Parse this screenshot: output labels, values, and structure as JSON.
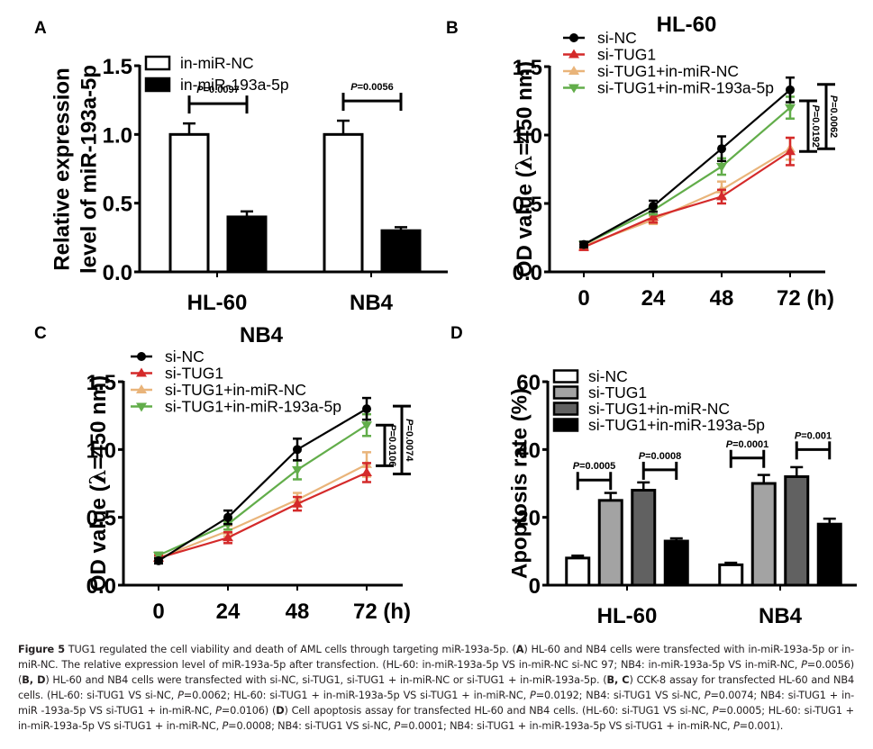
{
  "figure": {
    "panels": [
      "A",
      "B",
      "C",
      "D"
    ]
  },
  "chart_data": [
    {
      "panel": "A",
      "type": "bar",
      "title": "",
      "xlabel": "",
      "ylabel_lines": [
        "Relative expression",
        "level of miR-193a-5p"
      ],
      "ylim": [
        0,
        1.5
      ],
      "yticks": [
        0.0,
        0.5,
        1.0,
        1.5
      ],
      "ytick_labels": [
        "0.0",
        "0.5",
        "1.0",
        "1.5"
      ],
      "categories": [
        "HL-60",
        "NB4"
      ],
      "series": [
        {
          "name": "in-miR-NC",
          "fill": "#ffffff",
          "values": [
            1.0,
            1.0
          ],
          "errors": [
            0.08,
            0.1
          ]
        },
        {
          "name": "in-miR-193a-5p",
          "fill": "#000000",
          "values": [
            0.4,
            0.3
          ],
          "errors": [
            0.04,
            0.025
          ]
        }
      ],
      "comparisons": [
        {
          "category": "HL-60",
          "label_prefix": "P",
          "label_value": "=0.0097"
        },
        {
          "category": "NB4",
          "label_prefix": "P",
          "label_value": "=0.0056"
        }
      ],
      "legend": "top-left"
    },
    {
      "panel": "B",
      "type": "line",
      "title": "HL-60",
      "xlabel": "",
      "ylabel": "OD value (λ=450 nm)",
      "ylabel_parts": [
        "OD value (",
        "λ",
        "=450 nm)"
      ],
      "ylim": [
        0,
        1.5
      ],
      "yticks": [
        0.0,
        0.5,
        1.0,
        1.5
      ],
      "ytick_labels": [
        "0.0",
        "0.5",
        "1.0",
        "1.5"
      ],
      "x": [
        0,
        24,
        48,
        72
      ],
      "xtick_labels": [
        "0",
        "24",
        "48",
        "72 (h)"
      ],
      "series": [
        {
          "name": "si-NC",
          "color": "#000000",
          "marker": "circle",
          "values": [
            0.2,
            0.48,
            0.9,
            1.33
          ],
          "errors": [
            0.02,
            0.04,
            0.09,
            0.09
          ]
        },
        {
          "name": "si-TUG1",
          "color": "#d42a2a",
          "marker": "triangle-up",
          "values": [
            0.18,
            0.4,
            0.55,
            0.88
          ],
          "errors": [
            0.02,
            0.04,
            0.05,
            0.1
          ]
        },
        {
          "name": "si-TUG1+in-miR-NC",
          "color": "#e9b47a",
          "marker": "triangle-up",
          "values": [
            0.19,
            0.38,
            0.6,
            0.9
          ],
          "errors": [
            0.02,
            0.03,
            0.06,
            0.08
          ]
        },
        {
          "name": "si-TUG1+in-miR-193a-5p",
          "color": "#62ad4a",
          "marker": "triangle-down",
          "values": [
            0.2,
            0.45,
            0.77,
            1.2
          ],
          "errors": [
            0.02,
            0.03,
            0.06,
            0.08
          ]
        }
      ],
      "comparisons": [
        {
          "label_prefix": "P",
          "label_value": "=0.0192",
          "from": 0.88,
          "to": 1.25
        },
        {
          "label_prefix": "P",
          "label_value": "=0.0062",
          "from": 0.9,
          "to": 1.37
        }
      ],
      "legend": "top-left"
    },
    {
      "panel": "C",
      "type": "line",
      "title": "NB4",
      "xlabel": "",
      "ylabel": "OD value (λ=450 nm)",
      "ylabel_parts": [
        "OD value (",
        "λ",
        "=450 nm)"
      ],
      "ylim": [
        0,
        1.5
      ],
      "yticks": [
        0.0,
        0.5,
        1.0,
        1.5
      ],
      "ytick_labels": [
        "0.0",
        "0.5",
        "1.0",
        "1.5"
      ],
      "x": [
        0,
        24,
        48,
        72
      ],
      "xtick_labels": [
        "0",
        "24",
        "48",
        "72 (h)"
      ],
      "series": [
        {
          "name": "si-NC",
          "color": "#000000",
          "marker": "circle",
          "values": [
            0.18,
            0.5,
            1.0,
            1.3
          ],
          "errors": [
            0.02,
            0.05,
            0.08,
            0.08
          ]
        },
        {
          "name": "si-TUG1",
          "color": "#d42a2a",
          "marker": "triangle-up",
          "values": [
            0.2,
            0.35,
            0.6,
            0.83
          ],
          "errors": [
            0.02,
            0.04,
            0.05,
            0.07
          ]
        },
        {
          "name": "si-TUG1+in-miR-NC",
          "color": "#e9b47a",
          "marker": "triangle-up",
          "values": [
            0.2,
            0.4,
            0.63,
            0.89
          ],
          "errors": [
            0.02,
            0.04,
            0.05,
            0.09
          ]
        },
        {
          "name": "si-TUG1+in-miR-193a-5p",
          "color": "#62ad4a",
          "marker": "triangle-down",
          "values": [
            0.22,
            0.45,
            0.85,
            1.18
          ],
          "errors": [
            0.02,
            0.04,
            0.07,
            0.08
          ]
        }
      ],
      "comparisons": [
        {
          "label_prefix": "P",
          "label_value": "=0.0106",
          "from": 0.88,
          "to": 1.18
        },
        {
          "label_prefix": "P",
          "label_value": "=0.0074",
          "from": 0.82,
          "to": 1.32
        }
      ],
      "legend": "top-left"
    },
    {
      "panel": "D",
      "type": "bar",
      "title": "",
      "xlabel": "",
      "ylabel": "Apoptosis rate (%)",
      "ylim": [
        0,
        60
      ],
      "yticks": [
        0,
        20,
        40,
        60
      ],
      "ytick_labels": [
        "0",
        "20",
        "40",
        "60"
      ],
      "categories": [
        "HL-60",
        "NB4"
      ],
      "series": [
        {
          "name": "si-NC",
          "fill": "#ffffff",
          "values": [
            8,
            6
          ],
          "errors": [
            0.7,
            0.6
          ]
        },
        {
          "name": "si-TUG1",
          "fill": "#a3a3a3",
          "values": [
            25,
            30
          ],
          "errors": [
            2.2,
            2.5
          ]
        },
        {
          "name": "si-TUG1+in-miR-NC",
          "fill": "#616161",
          "values": [
            28,
            32
          ],
          "errors": [
            2.3,
            2.8
          ]
        },
        {
          "name": "si-TUG1+in-miR-193a-5p",
          "fill": "#000000",
          "values": [
            13,
            18
          ],
          "errors": [
            0.8,
            1.6
          ]
        }
      ],
      "comparisons": [
        {
          "category": "HL-60",
          "between": [
            0,
            1
          ],
          "level": 31,
          "label_prefix": "P",
          "label_value": "=0.0005"
        },
        {
          "category": "HL-60",
          "between": [
            2,
            3
          ],
          "level": 34,
          "label_prefix": "P",
          "label_value": "=0.0008"
        },
        {
          "category": "NB4",
          "between": [
            0,
            1
          ],
          "level": 37.5,
          "label_prefix": "P",
          "label_value": "=0.0001"
        },
        {
          "category": "NB4",
          "between": [
            2,
            3
          ],
          "level": 40,
          "label_prefix": "P",
          "label_value": "=0.001"
        }
      ],
      "legend": "top-left"
    }
  ],
  "caption": {
    "figure_label": "Figure 5",
    "title": " TUG1 regulated the cell viability and death of AML cells through targeting miR-193a-5p. (",
    "segments": [
      {
        "b": "A"
      },
      {
        "t": ") HL-60 and NB4 cells were transfected with in-miR-193a-5p or in-miR-NC. The relative expression level of miR-193a-5p after transfection. (HL-60: in-miR-193a-5p VS in-miR-NC si-NC 97; NB4: in-miR-193a-5p VS in-miR-NC, "
      },
      {
        "i": "P"
      },
      {
        "t": "=0.0056) ("
      },
      {
        "b": "B, D"
      },
      {
        "t": ") HL-60 and NB4 cells were transfected with si-NC, si-TUG1, si-TUG1 + in-miR-NC or si-TUG1 + in-miR-193a-5p. ("
      },
      {
        "b": "B, C"
      },
      {
        "t": ") CCK-8 assay for transfected HL-60 and NB4 cells. (HL-60: si-TUG1 VS si-NC, "
      },
      {
        "i": "P"
      },
      {
        "t": "=0.0062; HL-60: si-TUG1 + in-miR-193a-5p VS si-TUG1 + in-miR-NC, "
      },
      {
        "i": "P"
      },
      {
        "t": "=0.0192; NB4: si-TUG1 VS si-NC, "
      },
      {
        "i": "P"
      },
      {
        "t": "=0.0074; NB4: si-TUG1 + in-miR -193a-5p VS si-TUG1 + in-miR-NC, "
      },
      {
        "i": "P"
      },
      {
        "t": "=0.0106) ("
      },
      {
        "b": "D"
      },
      {
        "t": ") Cell apoptosis assay for transfected HL-60 and NB4 cells. (HL-60: si-TUG1 VS si-NC, "
      },
      {
        "i": "P"
      },
      {
        "t": "=0.0005; HL-60: si-TUG1 + in-miR-193a-5p VS si-TUG1 + in-miR-NC, "
      },
      {
        "i": "P"
      },
      {
        "t": "=0.0008; NB4: si-TUG1 VS si-NC, "
      },
      {
        "i": "P"
      },
      {
        "t": "=0.0001; NB4: si-TUG1 + in-miR-193a-5p VS si-TUG1 + in-miR-NC, "
      },
      {
        "i": "P"
      },
      {
        "t": "=0.001)."
      }
    ]
  }
}
